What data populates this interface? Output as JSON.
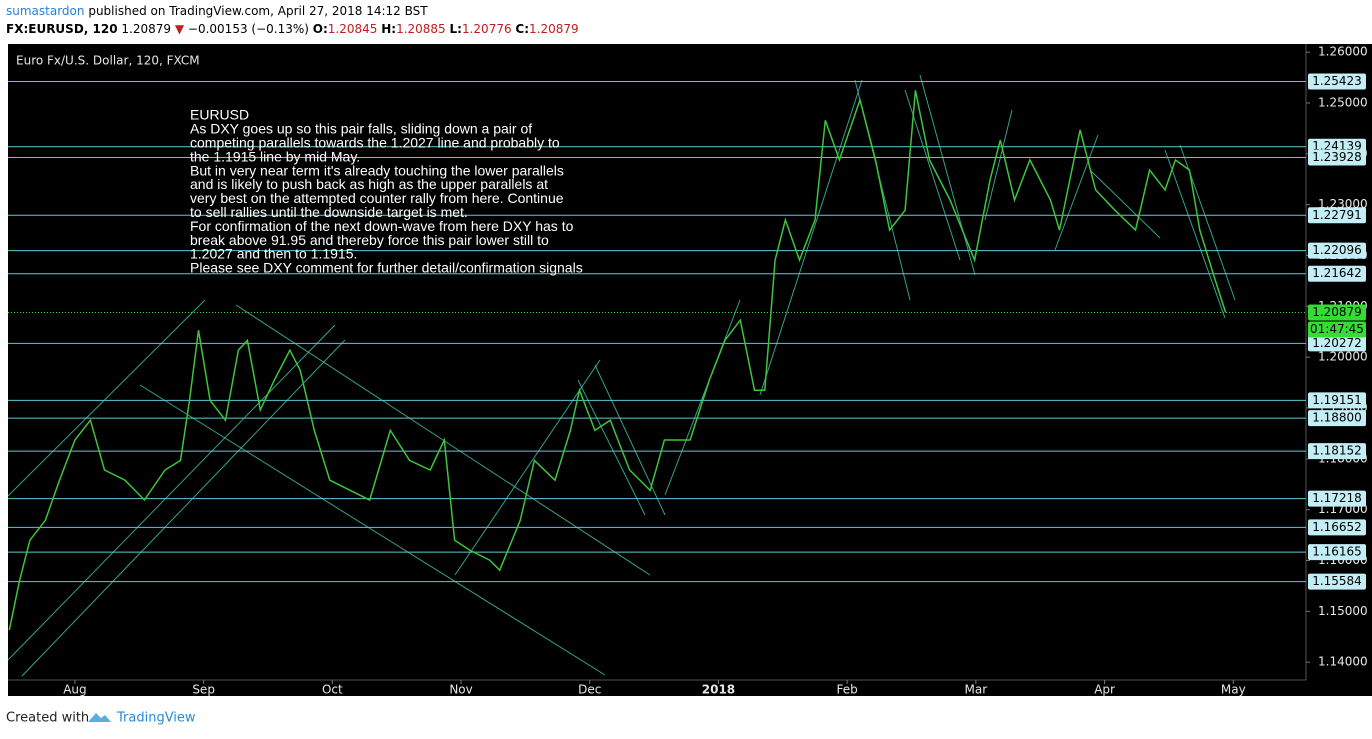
{
  "header": {
    "author": "sumastardon",
    "published": "published on TradingView.com, April 27, 2018 14:12 BST",
    "symbol": "FX:EURUSD, 120",
    "last": "1.20879",
    "arrow": "▼",
    "change": "−0.00153 (−0.13%)",
    "o_label": "O:",
    "o": "1.20845",
    "h_label": "H:",
    "h": "1.20885",
    "l_label": "L:",
    "l": "1.20776",
    "c_label": "C:",
    "c": "1.20879"
  },
  "chart_data": {
    "type": "line",
    "title": "Euro Fx/U.S. Dollar, 120, FXCM",
    "note": [
      "EURUSD",
      "As DXY goes up so this pair falls, sliding down a pair of",
      "competing parallels towards the 1.2027 line and probably to",
      "the 1.1915 line by mid May.",
      "But in very near term it's already touching the lower parallels",
      "and is likely to push back as high as the upper parallels at",
      "very best on the attempted counter rally from here. Continue",
      "to sell rallies until the downside target is met.",
      "For confirmation of the next down-wave from here DXY has to",
      "break above 91.95 and thereby force this pair lower still to",
      "1.2027 and then to 1.1915.",
      "Please see DXY comment for further detail/confirmation signals"
    ],
    "x": [
      -0.51,
      -0.43,
      -0.35,
      -0.23,
      -0.12,
      0,
      0.12,
      0.23,
      0.39,
      0.54,
      0.7,
      0.82,
      0.89,
      0.96,
      1.05,
      1.17,
      1.27,
      1.34,
      1.44,
      1.55,
      1.67,
      1.75,
      1.86,
      1.98,
      2.14,
      2.29,
      2.45,
      2.6,
      2.76,
      2.87,
      2.95,
      3.07,
      3.22,
      3.3,
      3.46,
      3.57,
      3.73,
      3.85,
      3.92,
      4.04,
      4.16,
      4.31,
      4.47,
      4.58,
      4.78,
      4.93,
      5.05,
      5.17,
      5.28,
      5.36,
      5.44,
      5.52,
      5.63,
      5.75,
      5.83,
      5.94,
      6.1,
      6.22,
      6.33,
      6.45,
      6.53,
      6.64,
      6.8,
      6.99,
      7.11,
      7.19,
      7.3,
      7.42,
      7.58,
      7.65,
      7.81,
      7.93,
      8.08,
      8.24,
      8.35,
      8.47,
      8.55,
      8.66,
      8.74,
      8.86,
      8.94
    ],
    "series": [
      {
        "color": "#3ec43e",
        "values": [
          1.1463,
          1.1561,
          1.164,
          1.1679,
          1.1758,
          1.1837,
          1.1876,
          1.1778,
          1.1758,
          1.1719,
          1.1778,
          1.1797,
          1.1915,
          1.2053,
          1.1915,
          1.1876,
          1.2014,
          1.2033,
          1.1896,
          1.1955,
          1.2014,
          1.1974,
          1.1856,
          1.1758,
          1.1738,
          1.1719,
          1.1856,
          1.1797,
          1.1778,
          1.1837,
          1.164,
          1.162,
          1.1601,
          1.1581,
          1.1679,
          1.1797,
          1.1758,
          1.1856,
          1.1935,
          1.1856,
          1.1876,
          1.1778,
          1.1738,
          1.1837,
          1.1837,
          1.1955,
          1.2033,
          1.2073,
          1.1935,
          1.1935,
          1.2191,
          1.227,
          1.2191,
          1.227,
          1.2466,
          1.2388,
          1.2506,
          1.2388,
          1.225,
          1.2289,
          1.2525,
          1.2388,
          1.2309,
          1.2191,
          1.2348,
          1.2427,
          1.2309,
          1.2388,
          1.2309,
          1.225,
          1.2447,
          1.2329,
          1.2289,
          1.225,
          1.2368,
          1.2329,
          1.2388,
          1.2368,
          1.225,
          1.2151,
          1.2088
        ]
      }
    ],
    "xlim": [
      -0.52,
      9.565
    ],
    "xticks": [
      {
        "value": 0,
        "label": "Aug"
      },
      {
        "value": 1,
        "label": "Sep"
      },
      {
        "value": 2,
        "label": "Oct"
      },
      {
        "value": 3,
        "label": "Nov"
      },
      {
        "value": 4,
        "label": "Dec"
      },
      {
        "value": 5,
        "label": "2018"
      },
      {
        "value": 6,
        "label": "Feb"
      },
      {
        "value": 7,
        "label": "Mar"
      },
      {
        "value": 8,
        "label": "Apr"
      },
      {
        "value": 9,
        "label": "May"
      }
    ],
    "ylim": [
      1.1365,
      1.2616
    ],
    "yticks": [
      {
        "value": 1.14,
        "label": "1.14000"
      },
      {
        "value": 1.15,
        "label": "1.15000"
      },
      {
        "value": 1.16,
        "label": "1.16000"
      },
      {
        "value": 1.17,
        "label": "1.17000"
      },
      {
        "value": 1.18,
        "label": "1.18000"
      },
      {
        "value": 1.19,
        "label": "1.19000"
      },
      {
        "value": 1.2,
        "label": "1.20000"
      },
      {
        "value": 1.21,
        "label": "1.21000"
      },
      {
        "value": 1.22,
        "label": "1.22000"
      },
      {
        "value": 1.23,
        "label": "1.23000"
      },
      {
        "value": 1.24,
        "label": "1.24000"
      },
      {
        "value": 1.25,
        "label": "1.25000"
      },
      {
        "value": 1.26,
        "label": "1.26000"
      }
    ],
    "levels": [
      {
        "value": 1.25423,
        "label": "1.25423"
      },
      {
        "value": 1.24139,
        "label": "1.24139"
      },
      {
        "value": 1.23928,
        "label": "1.23928"
      },
      {
        "value": 1.22791,
        "label": "1.22791"
      },
      {
        "value": 1.22096,
        "label": "1.22096"
      },
      {
        "value": 1.21642,
        "label": "1.21642"
      },
      {
        "value": 1.20272,
        "label": "1.20272"
      },
      {
        "value": 1.19151,
        "label": "1.19151"
      },
      {
        "value": 1.188,
        "label": "1.18800"
      },
      {
        "value": 1.18152,
        "label": "1.18152"
      },
      {
        "value": 1.17218,
        "label": "1.17218"
      },
      {
        "value": 1.16652,
        "label": "1.16652"
      },
      {
        "value": 1.16165,
        "label": "1.16165"
      },
      {
        "value": 1.15584,
        "label": "1.15584"
      }
    ],
    "level_color": "#5fc8d6",
    "current_price": {
      "value": 1.20879,
      "label": "1.20879",
      "countdown": "01:47:45",
      "color": "#33dd33"
    }
  },
  "footer": {
    "created": "Created with",
    "brand": "TradingView"
  }
}
